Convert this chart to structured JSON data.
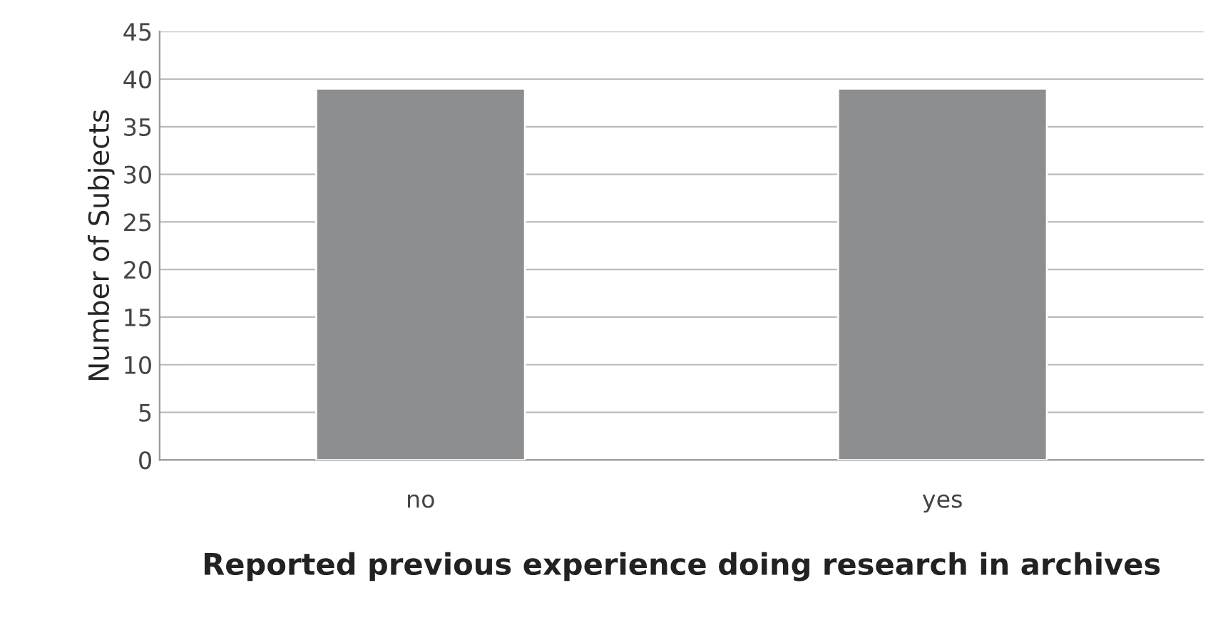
{
  "chart_data": {
    "type": "bar",
    "xlabel": "Reported previous experience doing research in archives",
    "ylabel": "Number of Subjects",
    "categories": [
      "no",
      "yes"
    ],
    "values": [
      39,
      39
    ],
    "color": "#8c8e90",
    "ylim": [
      0,
      45
    ],
    "yticks": [
      0,
      5,
      10,
      15,
      20,
      25,
      30,
      35,
      40,
      45
    ],
    "grid": "y"
  }
}
